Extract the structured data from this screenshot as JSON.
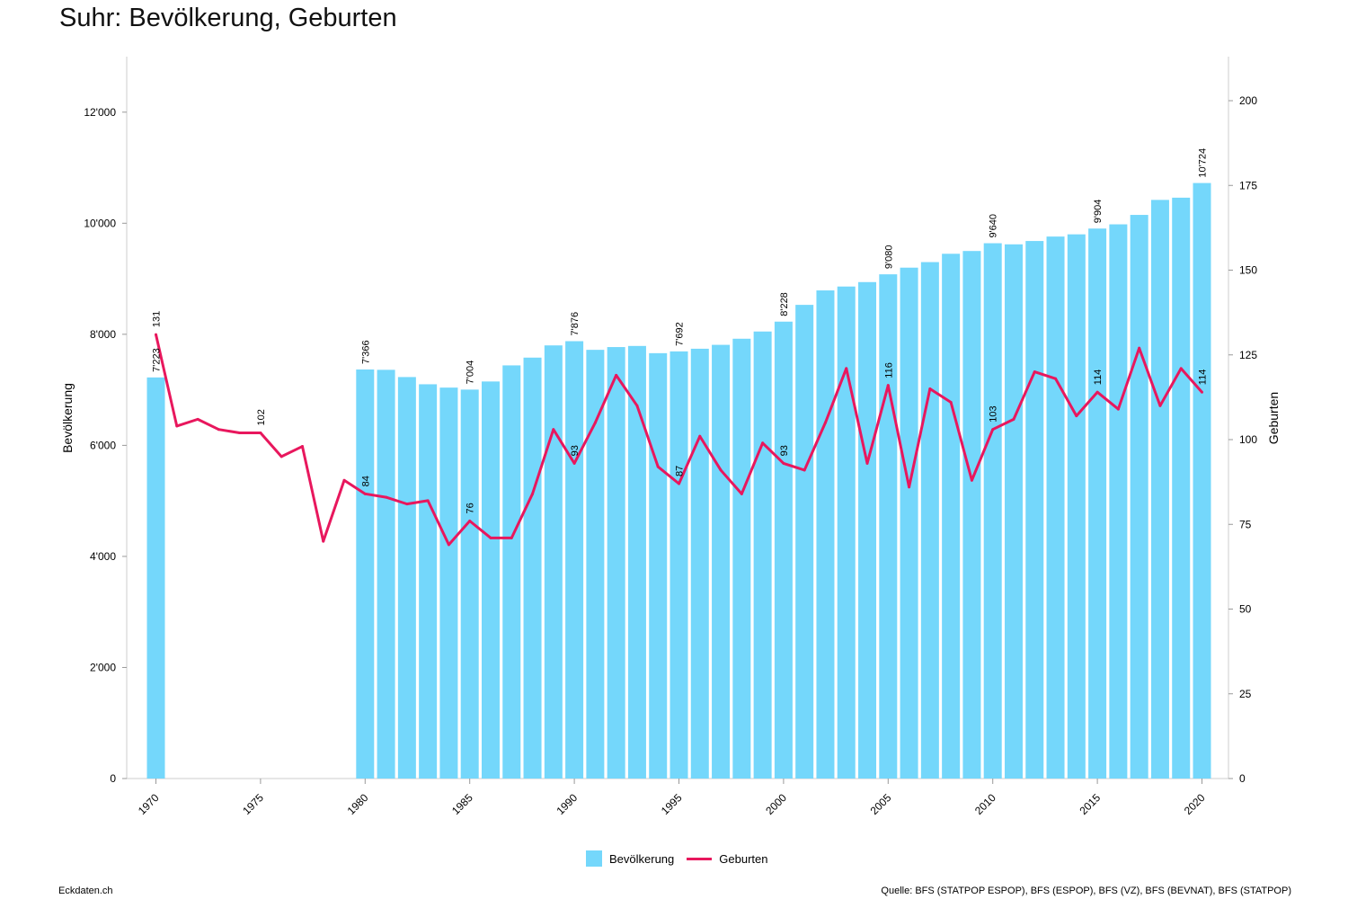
{
  "title": "Suhr: Bevölkerung, Geburten",
  "footer": {
    "site": "Eckdaten.ch",
    "source": "Quelle: BFS (STATPOP ESPOP), BFS (ESPOP), BFS (VZ), BFS (BEVNAT), BFS (STATPOP)"
  },
  "colors": {
    "bars": "#74d7fb",
    "line": "#e8175d",
    "axis": "#cccccc"
  },
  "chart_data": {
    "type": "bar",
    "xlabel": "",
    "ylabel": "Bevölkerung",
    "y2label": "Geburten",
    "ylim": [
      0,
      13000
    ],
    "y2lim": [
      0,
      213
    ],
    "yticks": [
      "0",
      "2'000",
      "4'000",
      "6'000",
      "8'000",
      "10'000",
      "12'000"
    ],
    "y2ticks": [
      "0",
      "25",
      "50",
      "75",
      "100",
      "125",
      "150",
      "175",
      "200"
    ],
    "xticks": [
      "1970",
      "1975",
      "1980",
      "1985",
      "1990",
      "1995",
      "2000",
      "2005",
      "2010",
      "2015",
      "2020"
    ],
    "legend": [
      "Bevölkerung",
      "Geburten"
    ],
    "legend_position": "bottom",
    "years": [
      1970,
      1971,
      1972,
      1973,
      1974,
      1975,
      1976,
      1977,
      1978,
      1979,
      1980,
      1981,
      1982,
      1983,
      1984,
      1985,
      1986,
      1987,
      1988,
      1989,
      1990,
      1991,
      1992,
      1993,
      1994,
      1995,
      1996,
      1997,
      1998,
      1999,
      2000,
      2001,
      2002,
      2003,
      2004,
      2005,
      2006,
      2007,
      2008,
      2009,
      2010,
      2011,
      2012,
      2013,
      2014,
      2015,
      2016,
      2017,
      2018,
      2019,
      2020
    ],
    "series": [
      {
        "name": "Bevölkerung",
        "type": "bar",
        "axis": "left",
        "values": [
          7223,
          null,
          null,
          null,
          null,
          null,
          null,
          null,
          null,
          null,
          7366,
          7360,
          7230,
          7100,
          7040,
          7004,
          7150,
          7440,
          7580,
          7800,
          7876,
          7720,
          7770,
          7790,
          7660,
          7692,
          7740,
          7810,
          7920,
          8050,
          8228,
          8530,
          8790,
          8860,
          8940,
          9080,
          9200,
          9300,
          9450,
          9500,
          9640,
          9620,
          9680,
          9760,
          9800,
          9904,
          9980,
          10150,
          10420,
          10460,
          10724
        ]
      },
      {
        "name": "Geburten",
        "type": "line",
        "axis": "right",
        "values": [
          131,
          104,
          106,
          103,
          102,
          102,
          95,
          98,
          70,
          88,
          84,
          83,
          81,
          82,
          69,
          76,
          71,
          71,
          84,
          103,
          93,
          105,
          119,
          110,
          92,
          87,
          101,
          91,
          84,
          99,
          93,
          91,
          105,
          121,
          93,
          116,
          86,
          115,
          111,
          88,
          103,
          106,
          120,
          118,
          107,
          114,
          109,
          127,
          110,
          121,
          114
        ]
      }
    ],
    "bar_labels": [
      {
        "year": 1970,
        "text": "7'223"
      },
      {
        "year": 1980,
        "text": "7'366"
      },
      {
        "year": 1985,
        "text": "7'004"
      },
      {
        "year": 1990,
        "text": "7'876"
      },
      {
        "year": 1995,
        "text": "7'692"
      },
      {
        "year": 2000,
        "text": "8'228"
      },
      {
        "year": 2005,
        "text": "9'080"
      },
      {
        "year": 2010,
        "text": "9'640"
      },
      {
        "year": 2015,
        "text": "9'904"
      },
      {
        "year": 2020,
        "text": "10'724"
      }
    ],
    "line_labels": [
      {
        "year": 1970,
        "text": "131"
      },
      {
        "year": 1975,
        "text": "102"
      },
      {
        "year": 1980,
        "text": "84"
      },
      {
        "year": 1985,
        "text": "76"
      },
      {
        "year": 1990,
        "text": "93"
      },
      {
        "year": 1995,
        "text": "87"
      },
      {
        "year": 2000,
        "text": "93"
      },
      {
        "year": 2005,
        "text": "116"
      },
      {
        "year": 2010,
        "text": "103"
      },
      {
        "year": 2015,
        "text": "114"
      },
      {
        "year": 2020,
        "text": "114"
      }
    ]
  }
}
